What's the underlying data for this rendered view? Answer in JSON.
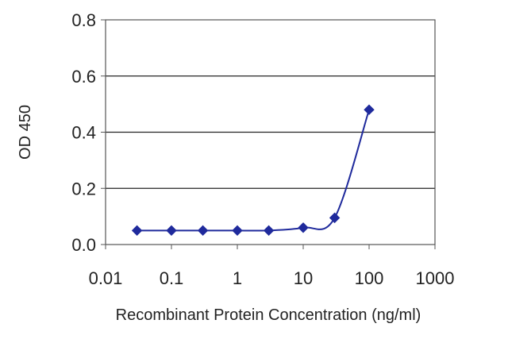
{
  "chart_data": {
    "type": "line",
    "title": "",
    "xlabel": "Recombinant Protein Concentration (ng/ml)",
    "ylabel": "OD 450",
    "x_scale": "log",
    "xlim": [
      0.01,
      1000
    ],
    "ylim": [
      0,
      0.8
    ],
    "x_ticks": [
      {
        "value": 0.01,
        "label": "0.01"
      },
      {
        "value": 0.1,
        "label": "0.1"
      },
      {
        "value": 1,
        "label": "1"
      },
      {
        "value": 10,
        "label": "10"
      },
      {
        "value": 100,
        "label": "100"
      },
      {
        "value": 1000,
        "label": "1000"
      }
    ],
    "y_ticks": [
      {
        "value": 0,
        "label": "0.0"
      },
      {
        "value": 0.2,
        "label": "0.2"
      },
      {
        "value": 0.4,
        "label": "0.4"
      },
      {
        "value": 0.6,
        "label": "0.6"
      },
      {
        "value": 0.8,
        "label": "0.8"
      }
    ],
    "grid": "horizontal",
    "legend": "none",
    "series": [
      {
        "color": "#1f2a9c",
        "marker": "diamond",
        "x": [
          0.03,
          0.1,
          0.3,
          1,
          3,
          10,
          30,
          100
        ],
        "y": [
          0.05,
          0.05,
          0.05,
          0.05,
          0.05,
          0.06,
          0.095,
          0.48
        ]
      }
    ]
  }
}
